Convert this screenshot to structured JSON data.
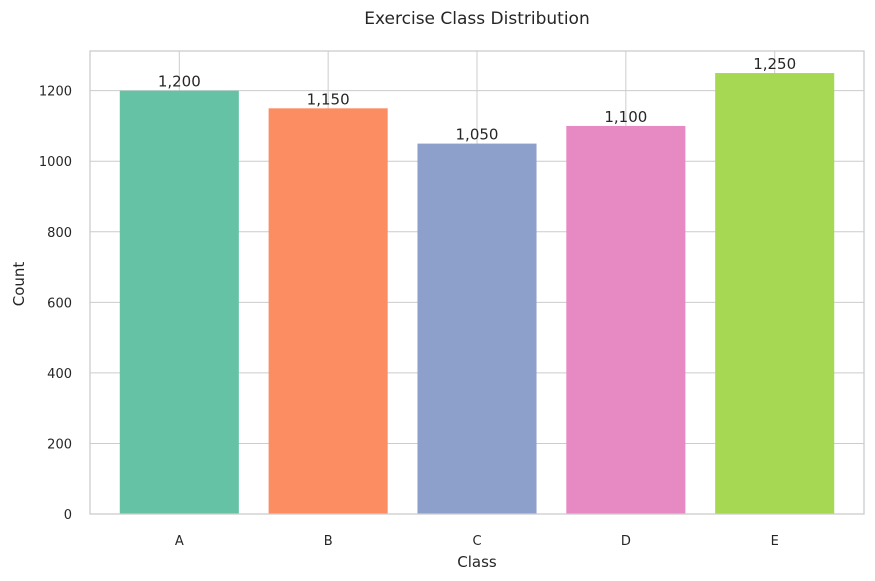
{
  "chart_data": {
    "type": "bar",
    "title": "Exercise Class Distribution",
    "xlabel": "Class",
    "ylabel": "Count",
    "categories": [
      "A",
      "B",
      "C",
      "D",
      "E"
    ],
    "values": [
      1200,
      1150,
      1050,
      1100,
      1250
    ],
    "value_labels": [
      "1,200",
      "1,150",
      "1,050",
      "1,100",
      "1,250"
    ],
    "colors": [
      "#66c2a5",
      "#fc8d62",
      "#8da0cb",
      "#e78ac3",
      "#a6d854"
    ],
    "ylim": [
      0,
      1312.5
    ],
    "yticks": [
      0,
      200,
      400,
      600,
      800,
      1000,
      1200
    ],
    "grid": true,
    "legend": "none"
  }
}
